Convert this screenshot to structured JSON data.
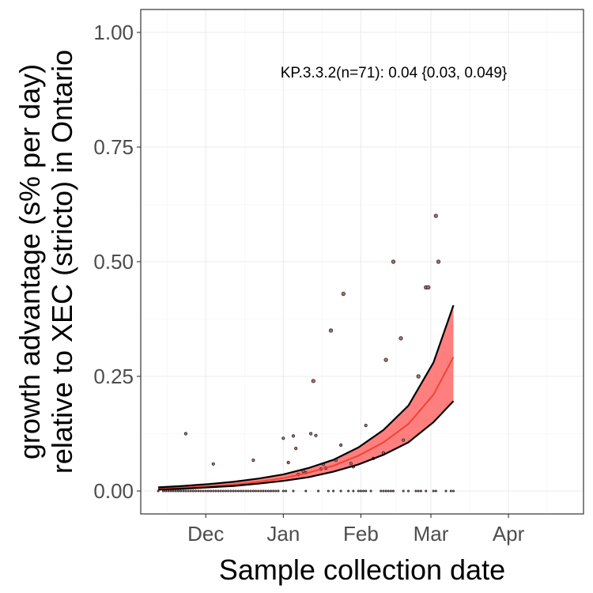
{
  "chart_data": {
    "type": "scatter",
    "xlabel": "Sample collection date",
    "ylabel_lines": [
      "growth advantage (s% per day)",
      "relative to XEC (stricto) in Ontario"
    ],
    "annotation": "KP.3.3.2(n=71): 0.04 {0.03, 0.049}",
    "x_domain": [
      "2024-11-05",
      "2025-05-01"
    ],
    "ylim": [
      -0.05,
      1.05
    ],
    "x_ticks": [
      {
        "label": "Dec",
        "date": "2024-12-01"
      },
      {
        "label": "Jan",
        "date": "2025-01-01"
      },
      {
        "label": "Feb",
        "date": "2025-02-01"
      },
      {
        "label": "Mar",
        "date": "2025-03-01"
      },
      {
        "label": "Apr",
        "date": "2025-04-01"
      }
    ],
    "y_ticks": [
      {
        "label": "0.00",
        "value": 0
      },
      {
        "label": "0.25",
        "value": 0.25
      },
      {
        "label": "0.50",
        "value": 0.5
      },
      {
        "label": "0.75",
        "value": 0.75
      },
      {
        "label": "1.00",
        "value": 1.0
      }
    ],
    "grid": true,
    "colors": {
      "ribbon": "#ff7f7f",
      "fit_line": "#ee4433",
      "bounds": "#000000",
      "point_fill": "#b07070",
      "point_stroke": "#222222"
    },
    "fit": {
      "x": [
        "2024-11-12",
        "2024-11-22",
        "2024-12-02",
        "2024-12-12",
        "2024-12-22",
        "2025-01-01",
        "2025-01-11",
        "2025-01-21",
        "2025-01-31",
        "2025-02-10",
        "2025-02-20",
        "2025-03-02",
        "2025-03-10"
      ],
      "mid": [
        0.005,
        0.007,
        0.01,
        0.014,
        0.02,
        0.028,
        0.04,
        0.055,
        0.077,
        0.106,
        0.146,
        0.21,
        0.292
      ],
      "lower": [
        0.003,
        0.005,
        0.008,
        0.011,
        0.016,
        0.022,
        0.03,
        0.042,
        0.058,
        0.079,
        0.106,
        0.15,
        0.196
      ],
      "upper": [
        0.008,
        0.011,
        0.015,
        0.02,
        0.027,
        0.036,
        0.05,
        0.068,
        0.095,
        0.133,
        0.186,
        0.28,
        0.405
      ]
    },
    "series": [
      {
        "name": "",
        "points": [
          {
            "x": "2024-11-12",
            "y": 0
          },
          {
            "x": "2024-11-14",
            "y": 0
          },
          {
            "x": "2024-11-15",
            "y": 0
          },
          {
            "x": "2024-11-16",
            "y": 0
          },
          {
            "x": "2024-11-17",
            "y": 0
          },
          {
            "x": "2024-11-18",
            "y": 0
          },
          {
            "x": "2024-11-19",
            "y": 0
          },
          {
            "x": "2024-11-20",
            "y": 0
          },
          {
            "x": "2024-11-21",
            "y": 0
          },
          {
            "x": "2024-11-22",
            "y": 0
          },
          {
            "x": "2024-11-23",
            "y": 0
          },
          {
            "x": "2024-11-24",
            "y": 0
          },
          {
            "x": "2024-11-25",
            "y": 0
          },
          {
            "x": "2024-11-26",
            "y": 0
          },
          {
            "x": "2024-11-27",
            "y": 0
          },
          {
            "x": "2024-11-28",
            "y": 0
          },
          {
            "x": "2024-11-29",
            "y": 0
          },
          {
            "x": "2024-11-30",
            "y": 0
          },
          {
            "x": "2024-12-01",
            "y": 0
          },
          {
            "x": "2024-12-02",
            "y": 0
          },
          {
            "x": "2024-12-03",
            "y": 0
          },
          {
            "x": "2024-12-04",
            "y": 0
          },
          {
            "x": "2024-12-05",
            "y": 0
          },
          {
            "x": "2024-12-06",
            "y": 0
          },
          {
            "x": "2024-12-07",
            "y": 0
          },
          {
            "x": "2024-12-08",
            "y": 0
          },
          {
            "x": "2024-12-09",
            "y": 0
          },
          {
            "x": "2024-12-10",
            "y": 0
          },
          {
            "x": "2024-12-11",
            "y": 0
          },
          {
            "x": "2024-12-12",
            "y": 0
          },
          {
            "x": "2024-12-13",
            "y": 0
          },
          {
            "x": "2024-12-14",
            "y": 0
          },
          {
            "x": "2024-12-15",
            "y": 0
          },
          {
            "x": "2024-12-16",
            "y": 0
          },
          {
            "x": "2024-12-17",
            "y": 0
          },
          {
            "x": "2024-12-18",
            "y": 0
          },
          {
            "x": "2024-12-19",
            "y": 0
          },
          {
            "x": "2024-12-20",
            "y": 0
          },
          {
            "x": "2024-12-21",
            "y": 0
          },
          {
            "x": "2024-12-22",
            "y": 0
          },
          {
            "x": "2024-12-23",
            "y": 0
          },
          {
            "x": "2024-12-24",
            "y": 0
          },
          {
            "x": "2024-12-25",
            "y": 0
          },
          {
            "x": "2024-12-26",
            "y": 0
          },
          {
            "x": "2024-12-27",
            "y": 0
          },
          {
            "x": "2024-12-28",
            "y": 0
          },
          {
            "x": "2024-12-29",
            "y": 0
          },
          {
            "x": "2024-12-30",
            "y": 0
          },
          {
            "x": "2025-01-01",
            "y": 0
          },
          {
            "x": "2025-01-02",
            "y": 0
          },
          {
            "x": "2025-01-05",
            "y": 0
          },
          {
            "x": "2025-01-10",
            "y": 0
          },
          {
            "x": "2025-01-15",
            "y": 0
          },
          {
            "x": "2025-01-19",
            "y": 0
          },
          {
            "x": "2025-01-21",
            "y": 0
          },
          {
            "x": "2025-01-24",
            "y": 0
          },
          {
            "x": "2025-01-27",
            "y": 0
          },
          {
            "x": "2025-01-29",
            "y": 0
          },
          {
            "x": "2025-01-31",
            "y": 0
          },
          {
            "x": "2025-02-01",
            "y": 0
          },
          {
            "x": "2025-02-02",
            "y": 0
          },
          {
            "x": "2025-02-03",
            "y": 0
          },
          {
            "x": "2025-02-05",
            "y": 0
          },
          {
            "x": "2025-02-09",
            "y": 0
          },
          {
            "x": "2025-02-10",
            "y": 0
          },
          {
            "x": "2025-02-11",
            "y": 0
          },
          {
            "x": "2025-02-12",
            "y": 0
          },
          {
            "x": "2025-02-13",
            "y": 0
          },
          {
            "x": "2025-02-14",
            "y": 0
          },
          {
            "x": "2025-02-18",
            "y": 0
          },
          {
            "x": "2025-02-20",
            "y": 0
          },
          {
            "x": "2025-02-23",
            "y": 0
          },
          {
            "x": "2025-02-24",
            "y": 0
          },
          {
            "x": "2025-02-25",
            "y": 0
          },
          {
            "x": "2025-02-27",
            "y": 0
          },
          {
            "x": "2025-03-02",
            "y": 0
          },
          {
            "x": "2025-03-03",
            "y": 0
          },
          {
            "x": "2025-03-07",
            "y": 0
          },
          {
            "x": "2025-03-09",
            "y": 0
          },
          {
            "x": "2025-03-10",
            "y": 0
          },
          {
            "x": "2024-11-23",
            "y": 0.125
          },
          {
            "x": "2024-12-04",
            "y": 0.059
          },
          {
            "x": "2024-12-20",
            "y": 0.067
          },
          {
            "x": "2025-01-01",
            "y": 0.115
          },
          {
            "x": "2025-01-03",
            "y": 0.062
          },
          {
            "x": "2025-01-05",
            "y": 0.12
          },
          {
            "x": "2025-01-06",
            "y": 0.093
          },
          {
            "x": "2025-01-07",
            "y": 0.036
          },
          {
            "x": "2025-01-09",
            "y": 0.043
          },
          {
            "x": "2025-01-10",
            "y": 0.04
          },
          {
            "x": "2025-01-12",
            "y": 0.125
          },
          {
            "x": "2025-01-13",
            "y": 0.24
          },
          {
            "x": "2025-01-14",
            "y": 0.121
          },
          {
            "x": "2025-01-16",
            "y": 0.048
          },
          {
            "x": "2025-01-17",
            "y": 0.058
          },
          {
            "x": "2025-01-18",
            "y": 0.05
          },
          {
            "x": "2025-01-20",
            "y": 0.35
          },
          {
            "x": "2025-01-22",
            "y": 0.067
          },
          {
            "x": "2025-01-24",
            "y": 0.1
          },
          {
            "x": "2025-01-25",
            "y": 0.43
          },
          {
            "x": "2025-01-28",
            "y": 0.06
          },
          {
            "x": "2025-01-29",
            "y": 0.053
          },
          {
            "x": "2025-02-03",
            "y": 0.143
          },
          {
            "x": "2025-02-06",
            "y": 0.071
          },
          {
            "x": "2025-02-10",
            "y": 0.083
          },
          {
            "x": "2025-02-11",
            "y": 0.286
          },
          {
            "x": "2025-02-14",
            "y": 0.5
          },
          {
            "x": "2025-02-17",
            "y": 0.333
          },
          {
            "x": "2025-02-18",
            "y": 0.111
          },
          {
            "x": "2025-02-24",
            "y": 0.25
          },
          {
            "x": "2025-02-27",
            "y": 0.444
          },
          {
            "x": "2025-02-28",
            "y": 0.444
          },
          {
            "x": "2025-03-03",
            "y": 0.6
          },
          {
            "x": "2025-03-04",
            "y": 0.5
          }
        ]
      }
    ]
  }
}
